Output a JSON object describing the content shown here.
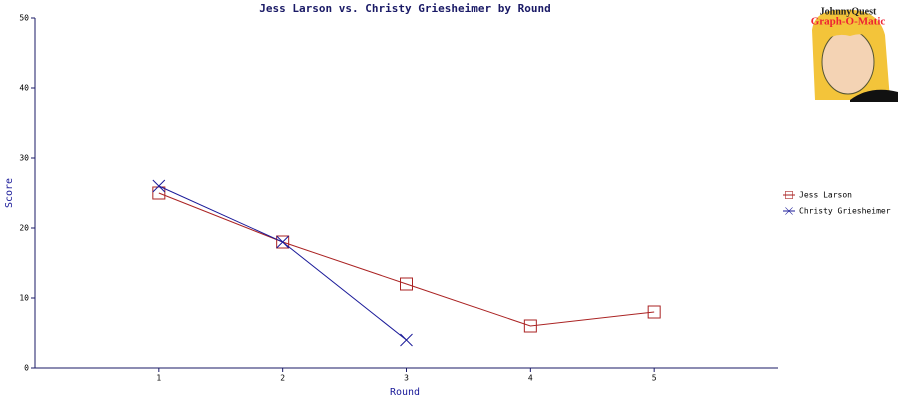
{
  "chart_data": {
    "type": "line",
    "title": "Jess Larson vs. Christy Griesheimer by Round",
    "xlabel": "Round",
    "ylabel": "Score",
    "logo": {
      "top": "JohnnyQuest",
      "bottom": "Graph-O-Matic"
    },
    "x": [
      1,
      2,
      3,
      4,
      5
    ],
    "series": [
      {
        "name": "Jess Larson",
        "color": "#aa2222",
        "marker": "square",
        "values": [
          25,
          18,
          12,
          6,
          8
        ]
      },
      {
        "name": "Christy Griesheimer",
        "color": "#1a1a99",
        "marker": "x",
        "values": [
          26,
          18,
          4,
          null,
          null
        ]
      }
    ],
    "xlim": [
      0,
      6
    ],
    "xticks": [
      1,
      2,
      3,
      4,
      5
    ],
    "ylim": [
      0,
      50
    ],
    "yticks": [
      0,
      10,
      20,
      30,
      40,
      50
    ],
    "grid": false,
    "legend": "right"
  }
}
